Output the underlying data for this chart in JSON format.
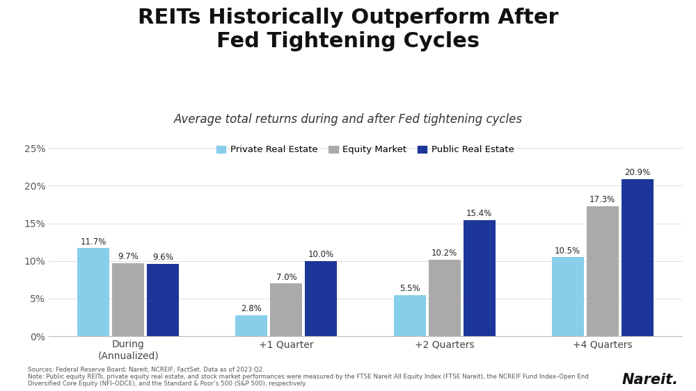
{
  "title": "REITs Historically Outperform After\nFed Tightening Cycles",
  "subtitle": "Average total returns during and after Fed tightening cycles",
  "categories": [
    "During\n(Annualized)",
    "+1 Quarter",
    "+2 Quarters",
    "+4 Quarters"
  ],
  "series": {
    "Private Real Estate": [
      11.7,
      2.8,
      5.5,
      10.5
    ],
    "Equity Market": [
      9.7,
      7.0,
      10.2,
      17.3
    ],
    "Public Real Estate": [
      9.6,
      10.0,
      15.4,
      20.9
    ]
  },
  "colors": {
    "Private Real Estate": "#87CEEB",
    "Equity Market": "#AAAAAA",
    "Public Real Estate": "#1C3799"
  },
  "ylim": [
    0,
    27
  ],
  "yticks": [
    0,
    5,
    10,
    15,
    20,
    25
  ],
  "ytick_labels": [
    "0%",
    "5%",
    "10%",
    "15%",
    "20%",
    "25%"
  ],
  "bar_width": 0.22,
  "sources_line1": "Sources: Federal Reserve Board; Nareit; NCREIF; FactSet. Data as of 2023:Q2.",
  "sources_line2": "Note: Public equity REITs, private equity real estate, and stock market performances were measured by the FTSE Nareit All Equity Index (FTSE Nareit), the NCREIF Fund Index–Open End",
  "sources_line3": "Diversified Core Equity (NFI–ODCE), and the Standard & Poor’s 500 (S&P 500), respectively.",
  "nareit_label": "Nareit.",
  "background_color": "#FFFFFF"
}
